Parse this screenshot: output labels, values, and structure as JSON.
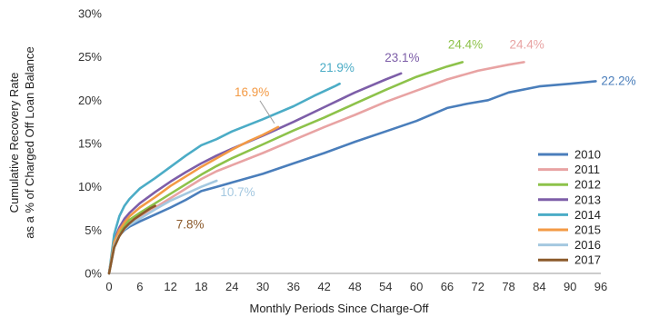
{
  "chart_data": {
    "type": "line",
    "title": "",
    "xlabel": "Monthly Periods Since Charge-Off",
    "ylabel_lines": [
      "Cumulative Recovery Rate",
      "as a % of Charged Off Loan Balance"
    ],
    "xlim": [
      0,
      96
    ],
    "ylim": [
      0,
      30
    ],
    "x_ticks": [
      0,
      6,
      12,
      18,
      24,
      30,
      36,
      42,
      48,
      54,
      60,
      66,
      72,
      78,
      84,
      90,
      96
    ],
    "x_tick_labels": [
      "0",
      "6",
      "12",
      "18",
      "24",
      "30",
      "36",
      "42",
      "48",
      "54",
      "60",
      "66",
      "72",
      "78",
      "84",
      "90",
      "96"
    ],
    "y_ticks": [
      0,
      5,
      10,
      15,
      20,
      25,
      30
    ],
    "y_tick_labels": [
      "0%",
      "5%",
      "10%",
      "15%",
      "20%",
      "25%",
      "30%"
    ],
    "grid": false,
    "legend_position": "bottom-right",
    "series": [
      {
        "name": "2010",
        "color": "#4a7ebb",
        "end_label": "22.2%",
        "x": [
          0,
          1,
          2,
          3,
          4,
          6,
          9,
          12,
          15,
          18,
          21,
          24,
          30,
          36,
          42,
          48,
          54,
          60,
          66,
          70,
          74,
          78,
          84,
          90,
          95
        ],
        "y": [
          0,
          3.0,
          4.4,
          5.0,
          5.4,
          6.0,
          6.8,
          7.6,
          8.5,
          9.5,
          10.0,
          10.5,
          11.5,
          12.7,
          13.9,
          15.2,
          16.4,
          17.6,
          19.1,
          19.6,
          20.0,
          20.9,
          21.6,
          21.9,
          22.2
        ]
      },
      {
        "name": "2011",
        "color": "#e8a3a3",
        "end_label": "24.4%",
        "x": [
          0,
          1,
          2,
          3,
          4,
          6,
          9,
          12,
          15,
          18,
          21,
          24,
          30,
          36,
          42,
          48,
          54,
          60,
          66,
          72,
          78,
          81
        ],
        "y": [
          0,
          3.2,
          4.6,
          5.4,
          5.9,
          6.6,
          7.6,
          8.7,
          9.8,
          10.9,
          11.8,
          12.5,
          13.9,
          15.4,
          16.9,
          18.3,
          19.8,
          21.1,
          22.4,
          23.4,
          24.1,
          24.4
        ]
      },
      {
        "name": "2012",
        "color": "#8dc24a",
        "end_label": "24.4%",
        "x": [
          0,
          1,
          2,
          3,
          4,
          6,
          9,
          12,
          15,
          18,
          21,
          24,
          30,
          36,
          42,
          48,
          54,
          60,
          66,
          69
        ],
        "y": [
          0,
          3.4,
          4.8,
          5.6,
          6.2,
          7.0,
          8.1,
          9.2,
          10.3,
          11.4,
          12.4,
          13.3,
          14.9,
          16.5,
          18.0,
          19.6,
          21.2,
          22.7,
          23.9,
          24.4
        ]
      },
      {
        "name": "2013",
        "color": "#7d5ea8",
        "end_label": "23.1%",
        "x": [
          0,
          1,
          2,
          3,
          4,
          6,
          9,
          12,
          15,
          18,
          21,
          24,
          30,
          36,
          42,
          48,
          54,
          57
        ],
        "y": [
          0,
          3.8,
          5.3,
          6.3,
          7.0,
          8.1,
          9.4,
          10.6,
          11.7,
          12.7,
          13.6,
          14.4,
          15.9,
          17.5,
          19.2,
          20.9,
          22.4,
          23.1
        ]
      },
      {
        "name": "2014",
        "color": "#4bacc6",
        "end_label": "21.9%",
        "x": [
          0,
          1,
          2,
          3,
          4,
          6,
          9,
          12,
          15,
          18,
          21,
          24,
          30,
          36,
          40,
          44,
          45
        ],
        "y": [
          0,
          4.5,
          6.6,
          7.8,
          8.6,
          9.8,
          11.0,
          12.3,
          13.6,
          14.8,
          15.5,
          16.4,
          17.8,
          19.3,
          20.5,
          21.6,
          21.9
        ]
      },
      {
        "name": "2015",
        "color": "#f39a45",
        "end_label": "16.9%",
        "x": [
          0,
          1,
          2,
          3,
          4,
          6,
          9,
          12,
          15,
          18,
          21,
          24,
          27,
          30,
          33
        ],
        "y": [
          0,
          3.6,
          5.0,
          5.9,
          6.6,
          7.6,
          8.8,
          10.1,
          11.2,
          12.3,
          13.3,
          14.3,
          15.2,
          16.0,
          16.9
        ]
      },
      {
        "name": "2016",
        "color": "#a4c8e0",
        "end_label": "10.7%",
        "x": [
          0,
          1,
          2,
          3,
          4,
          6,
          9,
          12,
          15,
          18,
          21
        ],
        "y": [
          0,
          3.2,
          4.4,
          5.1,
          5.6,
          6.3,
          7.4,
          8.4,
          9.2,
          10.0,
          10.7
        ]
      },
      {
        "name": "2017",
        "color": "#8b5a2b",
        "end_label": "7.8%",
        "x": [
          0,
          1,
          2,
          3,
          4,
          5,
          6,
          7,
          8,
          9
        ],
        "y": [
          0,
          3.0,
          4.3,
          5.2,
          5.8,
          6.3,
          6.7,
          7.1,
          7.5,
          7.8
        ]
      }
    ]
  }
}
